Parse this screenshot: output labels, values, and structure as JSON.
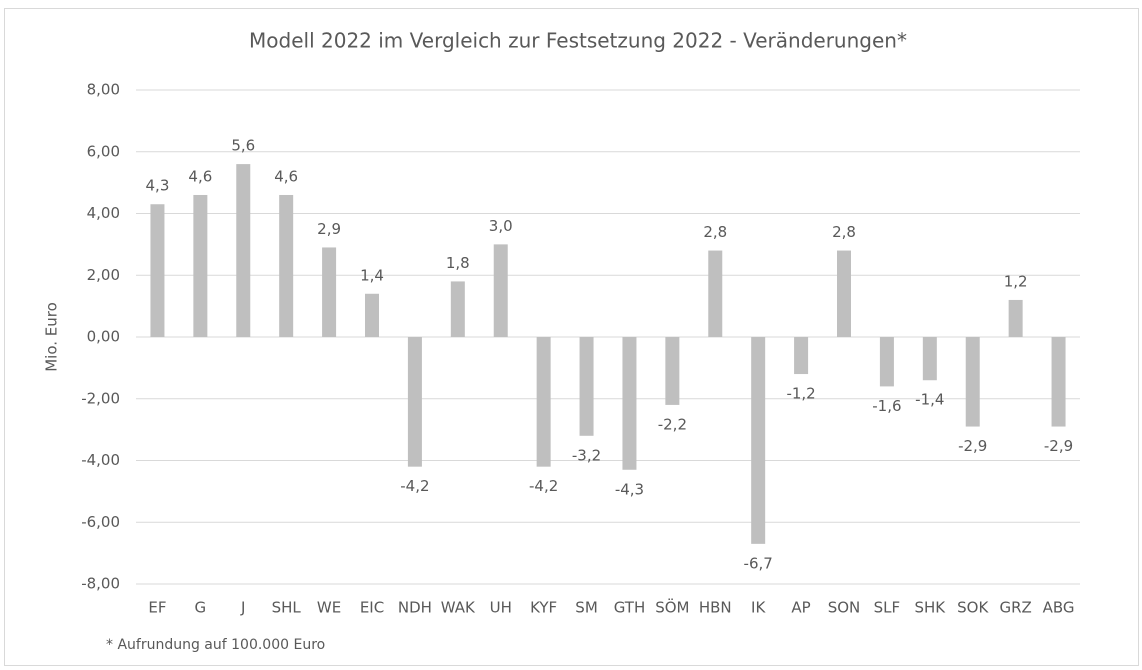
{
  "chart_data": {
    "type": "bar",
    "title": "Modell 2022 im Vergleich zur Festsetzung 2022 - Veränderungen*",
    "y_label": "Mio. Euro",
    "annotation": "* Aufrundung auf 100.000 Euro",
    "categories": [
      "EF",
      "G",
      "J",
      "SHL",
      "WE",
      "EIC",
      "NDH",
      "WAK",
      "UH",
      "KYF",
      "SM",
      "GTH",
      "SÖM",
      "HBN",
      "IK",
      "AP",
      "SON",
      "SLF",
      "SHK",
      "SOK",
      "GRZ",
      "ABG"
    ],
    "values": [
      4.3,
      4.6,
      5.6,
      4.6,
      2.9,
      1.4,
      -4.2,
      1.8,
      3.0,
      -4.2,
      -3.2,
      -4.3,
      -2.2,
      2.8,
      -6.7,
      -1.2,
      2.8,
      -1.6,
      -1.4,
      -2.9,
      1.2,
      -2.9
    ],
    "value_labels": [
      "4,3",
      "4,6",
      "5,6",
      "4,6",
      "2,9",
      "1,4",
      "-4,2",
      "1,8",
      "3,0",
      "-4,2",
      "-3,2",
      "-4,3",
      "-2,2",
      "2,8",
      "-6,7",
      "-1,2",
      "2,8",
      "-1,6",
      "-1,4",
      "-2,9",
      "1,2",
      "-2,9"
    ],
    "color": "#bfbfbf",
    "ylim": [
      -8,
      8
    ],
    "yticks": [
      {
        "value": -8,
        "label": "-8,00"
      },
      {
        "value": -6,
        "label": "-6,00"
      },
      {
        "value": -4,
        "label": "-4,00"
      },
      {
        "value": -2,
        "label": "-2,00"
      },
      {
        "value": 0,
        "label": "0,00"
      },
      {
        "value": 2,
        "label": "2,00"
      },
      {
        "value": 4,
        "label": "4,00"
      },
      {
        "value": 6,
        "label": "6,00"
      },
      {
        "value": 8,
        "label": "8,00"
      }
    ],
    "grid": true
  }
}
